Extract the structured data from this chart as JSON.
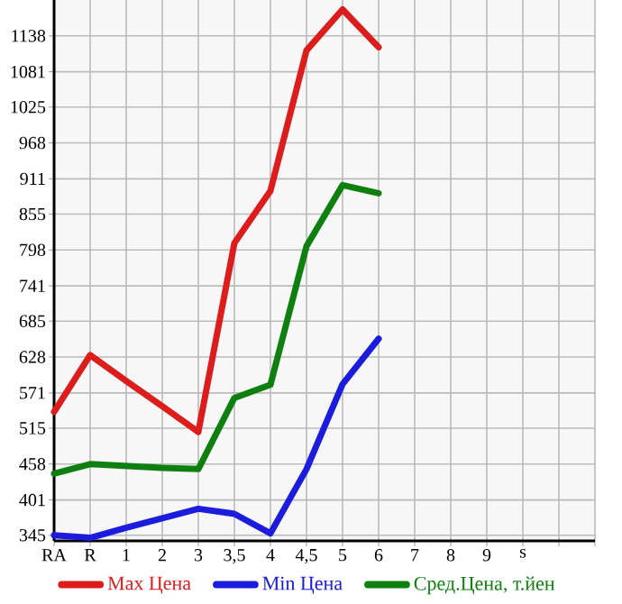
{
  "chart_data": {
    "type": "line",
    "categories": [
      "RA",
      "R",
      "1",
      "2",
      "3",
      "3,5",
      "4",
      "4,5",
      "5",
      "6",
      "7",
      "8",
      "9",
      "s",
      null,
      null
    ],
    "series": [
      {
        "name": "Max Цена",
        "color": "#dd1c1c",
        "values": [
          541,
          631,
          590,
          550,
          509,
          809,
          892,
          1115,
          1180,
          1120,
          null,
          null,
          null,
          null,
          null,
          null
        ]
      },
      {
        "name": "Min Цена",
        "color": "#1c1cdd",
        "values": [
          345,
          341,
          357,
          372,
          387,
          379,
          348,
          450,
          585,
          657,
          null,
          null,
          null,
          null,
          null,
          null
        ]
      },
      {
        "name": "Сред.Цена, т.йен",
        "color": "#0f800f",
        "values": [
          443,
          458,
          455,
          452,
          450,
          563,
          584,
          804,
          901,
          888,
          null,
          null,
          null,
          null,
          null,
          null
        ]
      }
    ],
    "ylim": [
      336,
      1195
    ],
    "yticks": [
      345,
      401,
      458,
      515,
      571,
      628,
      685,
      741,
      798,
      855,
      911,
      968,
      1025,
      1081,
      1138
    ],
    "grid": true,
    "legend": "bottom",
    "marker": "none"
  }
}
